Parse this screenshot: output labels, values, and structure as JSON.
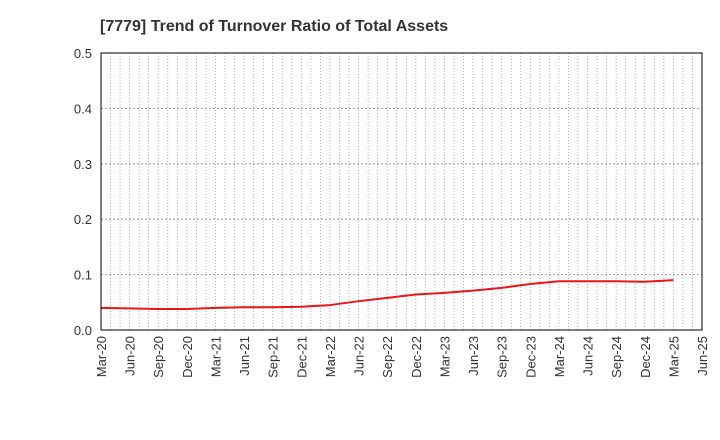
{
  "chart_data": {
    "type": "line",
    "title": "[7779]  Trend of Turnover Ratio of Total Assets",
    "xlabel": "",
    "ylabel": "",
    "ylim": [
      0,
      0.5
    ],
    "yticks": [
      "0.0",
      "0.1",
      "0.2",
      "0.3",
      "0.4",
      "0.5"
    ],
    "xticks": [
      "Mar-20",
      "Jun-20",
      "Sep-20",
      "Dec-20",
      "Mar-21",
      "Jun-21",
      "Sep-21",
      "Dec-21",
      "Mar-22",
      "Jun-22",
      "Sep-22",
      "Dec-22",
      "Mar-23",
      "Jun-23",
      "Sep-23",
      "Dec-23",
      "Mar-24",
      "Jun-24",
      "Sep-24",
      "Dec-24",
      "Mar-25",
      "Jun-25"
    ],
    "grid": true,
    "legend": "none",
    "series": [
      {
        "color": "#e8141c",
        "x": [
          "Mar-20",
          "Jun-20",
          "Sep-20",
          "Dec-20",
          "Mar-21",
          "Jun-21",
          "Sep-21",
          "Dec-21",
          "Mar-22",
          "Jun-22",
          "Sep-22",
          "Dec-22",
          "Mar-23",
          "Jun-23",
          "Sep-23",
          "Dec-23",
          "Mar-24",
          "Jun-24",
          "Sep-24",
          "Dec-24",
          "Mar-25"
        ],
        "values": [
          0.04,
          0.039,
          0.038,
          0.038,
          0.04,
          0.041,
          0.041,
          0.042,
          0.045,
          0.052,
          0.058,
          0.064,
          0.067,
          0.071,
          0.076,
          0.083,
          0.088,
          0.088,
          0.088,
          0.087,
          0.09
        ]
      }
    ]
  }
}
